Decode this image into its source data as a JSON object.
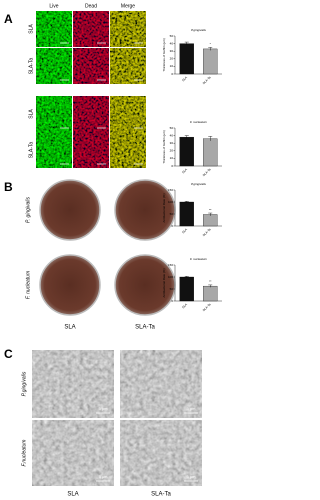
{
  "panel_labels": [
    "A",
    "B",
    "C"
  ],
  "panel_a": {
    "columns": [
      "Live",
      "Dead",
      "Merge"
    ],
    "rows": [
      "SLA",
      "SLA-Ta",
      "SLA",
      "SLA-Ta"
    ]
  },
  "panel_b": {
    "rows": [
      "P. gingivalis",
      "F. nucleatum"
    ],
    "columns": [
      "SLA",
      "SLA-Ta"
    ]
  },
  "panel_c": {
    "rows": [
      "P.gingivalis",
      "F.nucleatum"
    ],
    "columns": [
      "SLA",
      "SLA-Ta"
    ],
    "scale_bars": [
      "5 μm",
      "5 μm",
      "5 μm",
      "5 μm"
    ]
  },
  "charts": [
    {
      "title": "P.gingivalis",
      "y_label": "Thickness of biofilm (μm)",
      "categories": [
        "SLA",
        "SLA-Ta"
      ],
      "values": [
        40,
        33
      ],
      "errors": [
        2,
        2
      ],
      "significance": "*",
      "colors": [
        "#111111",
        "#a8a8a8"
      ],
      "ylim": [
        0,
        50
      ],
      "yticks": [
        0,
        10,
        20,
        30,
        40,
        50
      ]
    },
    {
      "title": "F. nucleatum",
      "y_label": "Thickness of biofilm (μm)",
      "categories": [
        "SLA",
        "SLA-Ta"
      ],
      "values": [
        38,
        36
      ],
      "errors": [
        2,
        3
      ],
      "colors": [
        "#111111",
        "#a8a8a8"
      ],
      "ylim": [
        0,
        50
      ],
      "yticks": [
        0,
        10,
        20,
        30,
        40,
        50
      ]
    },
    {
      "title": "P.gingivalis",
      "y_label": "Antibacterial Rate (%)",
      "categories": [
        "SLA",
        "SLA-Ta"
      ],
      "values": [
        100,
        48
      ],
      "errors": [
        3,
        6
      ],
      "significance": "**",
      "colors": [
        "#111111",
        "#a8a8a8"
      ],
      "ylim": [
        0,
        150
      ],
      "yticks": [
        0,
        50,
        100,
        150
      ]
    },
    {
      "title": "F. nucleatum",
      "y_label": "Antibacterial Rate (%)",
      "categories": [
        "SLA",
        "SLA-Ta"
      ],
      "values": [
        100,
        62
      ],
      "errors": [
        3,
        5
      ],
      "significance": "**",
      "colors": [
        "#111111",
        "#a8a8a8"
      ],
      "ylim": [
        0,
        150
      ],
      "yticks": [
        0,
        50,
        100,
        150
      ]
    }
  ]
}
